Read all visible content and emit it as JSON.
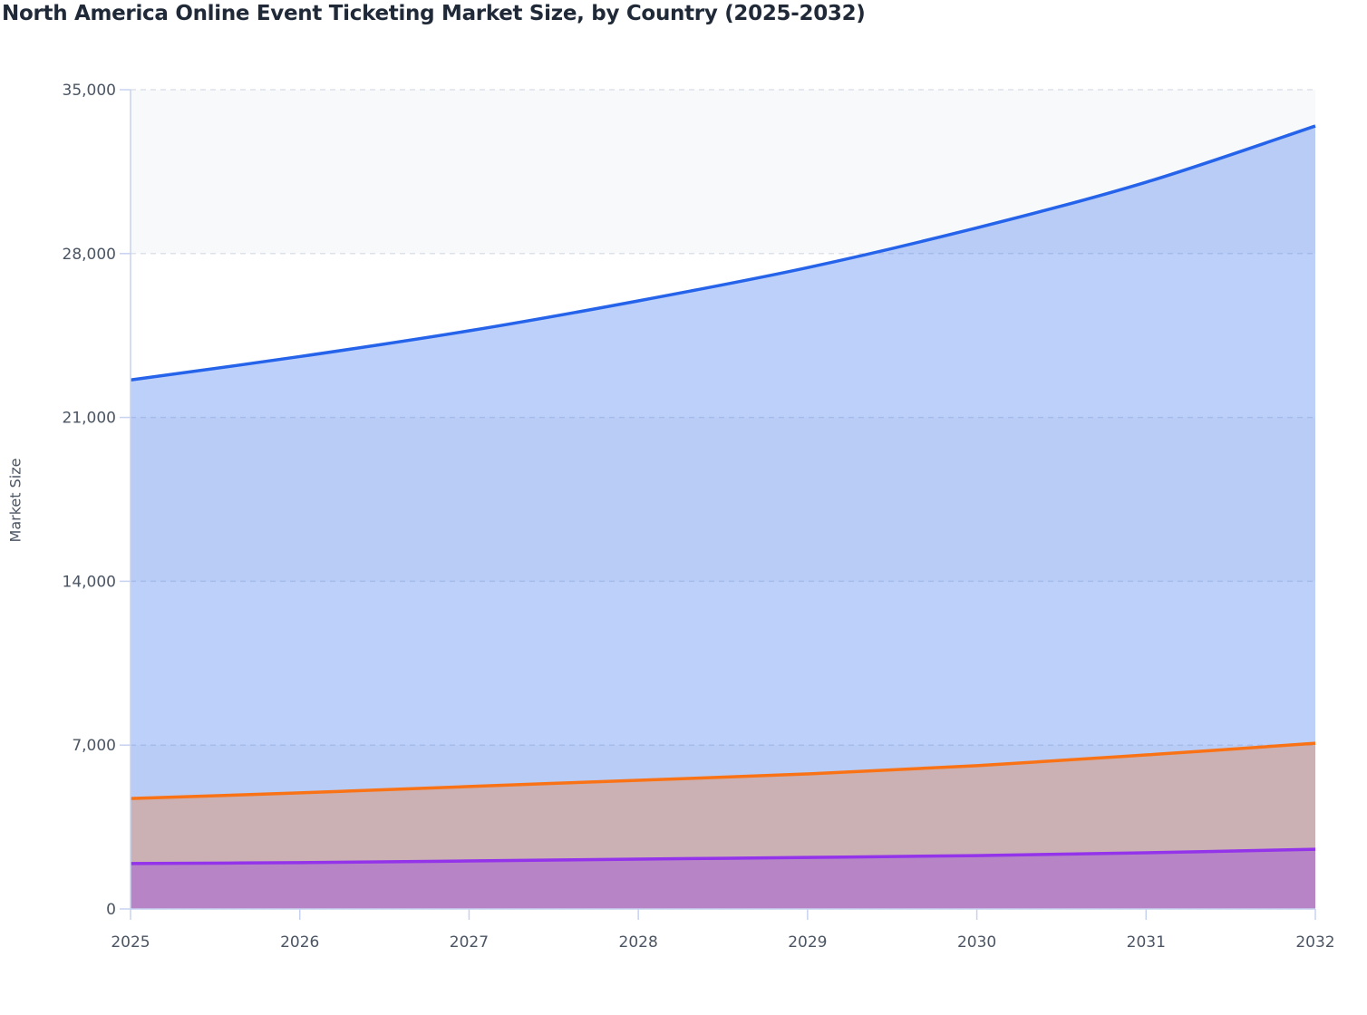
{
  "chart_data": {
    "type": "area",
    "title": "North America Online Event Ticketing Market Size, by Country (2025-2032)",
    "xlabel": "",
    "ylabel": "Market Size",
    "categories": [
      "2025",
      "2026",
      "2027",
      "2028",
      "2029",
      "2030",
      "2031",
      "2032"
    ],
    "ylim": [
      0,
      35000
    ],
    "yticks": [
      0,
      7000,
      14000,
      21000,
      28000,
      35000
    ],
    "ytick_labels": [
      "0",
      "7,000",
      "14,000",
      "21,000",
      "28,000",
      "35,000"
    ],
    "grid": true,
    "legend": "none",
    "series": [
      {
        "color": "#2563eb",
        "values": [
          22600,
          23600,
          24700,
          25980,
          27400,
          29100,
          31050,
          33450
        ]
      },
      {
        "color": "#f97316",
        "values": [
          4720,
          4960,
          5230,
          5500,
          5770,
          6120,
          6580,
          7080
        ]
      },
      {
        "color": "#9333ea",
        "values": [
          1940,
          1980,
          2050,
          2130,
          2200,
          2280,
          2400,
          2550
        ]
      }
    ]
  }
}
